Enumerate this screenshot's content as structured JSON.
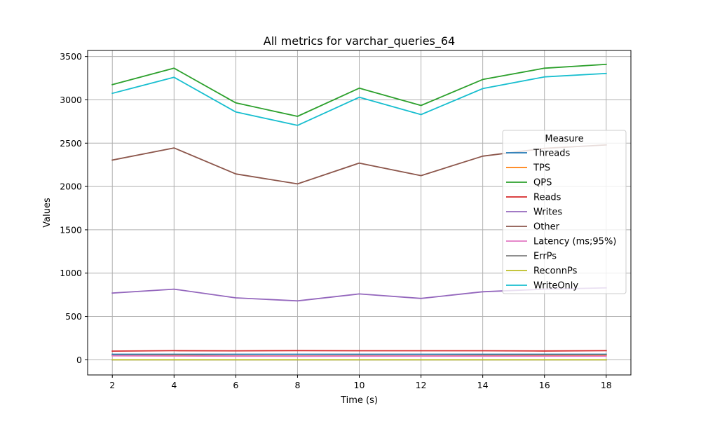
{
  "chart_data": {
    "type": "line",
    "title": "All metrics for varchar_queries_64",
    "xlabel": "Time (s)",
    "ylabel": "Values",
    "x": [
      2,
      4,
      6,
      8,
      10,
      12,
      14,
      16,
      18
    ],
    "xlim": [
      1.2,
      18.8
    ],
    "ylim": [
      -175,
      3570
    ],
    "xticks": [
      2,
      4,
      6,
      8,
      10,
      12,
      14,
      16,
      18
    ],
    "yticks": [
      0,
      500,
      1000,
      1500,
      2000,
      2500,
      3000,
      3500
    ],
    "grid": true,
    "legend": {
      "title": "Measure",
      "placement": "center-right"
    },
    "series": [
      {
        "name": "Threads",
        "color": "#1f77b4",
        "values": [
          64,
          64,
          64,
          64,
          64,
          64,
          64,
          64,
          64
        ]
      },
      {
        "name": "TPS",
        "color": "#ff7f0e",
        "values": [
          48,
          51,
          45,
          44,
          47,
          45,
          48,
          51,
          52
        ]
      },
      {
        "name": "QPS",
        "color": "#2ca02c",
        "values": [
          3175,
          3365,
          2965,
          2810,
          3135,
          2935,
          3235,
          3365,
          3410
        ]
      },
      {
        "name": "Reads",
        "color": "#d62728",
        "values": [
          100,
          105,
          103,
          106,
          104,
          104,
          104,
          102,
          105
        ]
      },
      {
        "name": "Writes",
        "color": "#9467bd",
        "values": [
          770,
          815,
          715,
          680,
          760,
          708,
          785,
          815,
          830
        ]
      },
      {
        "name": "Other",
        "color": "#8c564b",
        "values": [
          2305,
          2445,
          2145,
          2030,
          2270,
          2125,
          2350,
          2440,
          2480
        ]
      },
      {
        "name": "Latency (ms;95%)",
        "color": "#e377c2",
        "values": [
          46,
          43,
          42,
          41,
          42,
          42,
          42,
          42,
          42
        ]
      },
      {
        "name": "ErrPs",
        "color": "#7f7f7f",
        "values": [
          0,
          0,
          0,
          0,
          0,
          0,
          0,
          0,
          0
        ]
      },
      {
        "name": "ReconnPs",
        "color": "#bcbd22",
        "values": [
          0,
          0,
          0,
          0,
          0,
          0,
          0,
          0,
          0
        ]
      },
      {
        "name": "WriteOnly",
        "color": "#17becf",
        "values": [
          3075,
          3260,
          2860,
          2705,
          3030,
          2830,
          3130,
          3265,
          3305
        ]
      }
    ]
  }
}
